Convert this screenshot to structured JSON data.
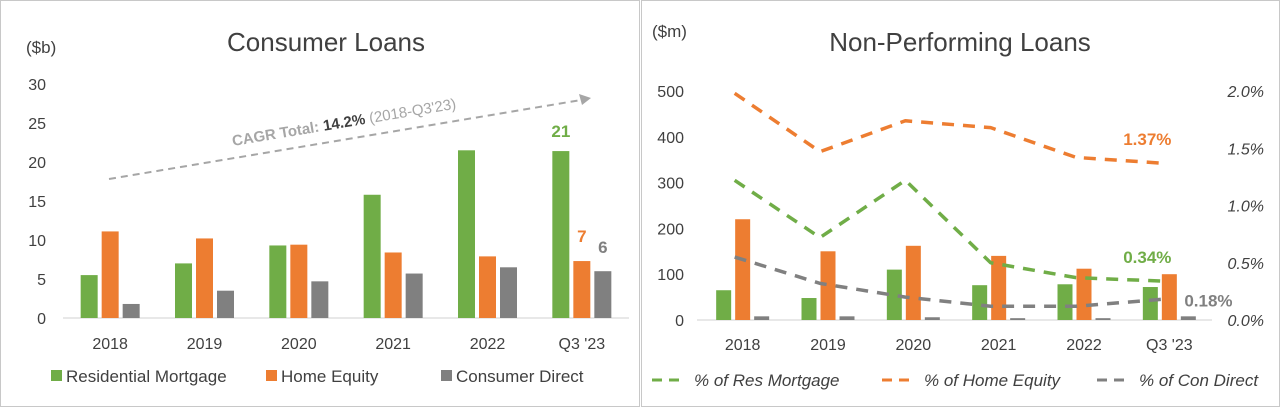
{
  "chart_data": [
    {
      "type": "bar",
      "title": "Consumer Loans",
      "ylabel": "($b)",
      "ylim": [
        0,
        30
      ],
      "yticks": [
        0,
        5,
        10,
        15,
        20,
        25,
        30
      ],
      "categories": [
        "2018",
        "2019",
        "2020",
        "2021",
        "2022",
        "Q3 '23"
      ],
      "series": [
        {
          "name": "Residential Mortgage",
          "color": "#70ad47",
          "values": [
            5.5,
            7.0,
            9.3,
            15.8,
            21.5,
            21.4
          ]
        },
        {
          "name": "Home Equity",
          "color": "#ed7d31",
          "values": [
            11.1,
            10.2,
            9.4,
            8.4,
            7.9,
            7.3
          ]
        },
        {
          "name": "Consumer Direct",
          "color": "#808080",
          "values": [
            1.8,
            3.5,
            4.7,
            5.7,
            6.5,
            6.0
          ]
        }
      ],
      "data_labels": [
        "21",
        "7",
        "6"
      ],
      "annotation": {
        "prefix": "CAGR Total: ",
        "value": "14.2%",
        "suffix": "(2018-Q3'23)"
      },
      "legend": "bottom",
      "grid": false
    },
    {
      "type": "bar+line",
      "title": "Non-Performing Loans",
      "ylabel": "($m)",
      "ylim": [
        0,
        500
      ],
      "yticks": [
        0,
        100,
        200,
        300,
        400,
        500
      ],
      "y2lim": [
        0,
        2.0
      ],
      "y2ticks": [
        "0.0%",
        "0.5%",
        "1.0%",
        "1.5%",
        "2.0%"
      ],
      "categories": [
        "2018",
        "2019",
        "2020",
        "2021",
        "2022",
        "Q3 '23"
      ],
      "bars": [
        {
          "color": "#70ad47",
          "values": [
            65,
            48,
            110,
            76,
            78,
            72
          ]
        },
        {
          "color": "#ed7d31",
          "values": [
            220,
            150,
            162,
            140,
            112,
            100
          ]
        },
        {
          "color": "#808080",
          "values": [
            8,
            8,
            6,
            4,
            4,
            8
          ]
        }
      ],
      "lines": [
        {
          "name": "% of Res Mortgage",
          "color": "#70ad47",
          "values": [
            1.22,
            0.72,
            1.22,
            0.5,
            0.37,
            0.34
          ],
          "end_label": "0.34%"
        },
        {
          "name": "% of Home Equity",
          "color": "#ed7d31",
          "values": [
            1.98,
            1.47,
            1.74,
            1.68,
            1.42,
            1.37
          ],
          "end_label": "1.37%"
        },
        {
          "name": "% of Con Direct",
          "color": "#808080",
          "values": [
            0.55,
            0.32,
            0.2,
            0.12,
            0.12,
            0.18
          ],
          "end_label": "0.18%"
        }
      ],
      "legend": "bottom",
      "grid": false
    }
  ]
}
